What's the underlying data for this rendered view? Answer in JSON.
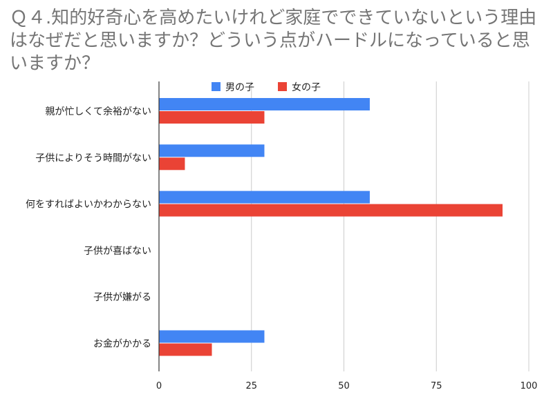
{
  "chart_data": {
    "type": "bar",
    "orientation": "horizontal",
    "title": "Ｑ４.知的好奇心を高めたいけれど家庭でできていないという理由はなぜだと思いますか？どういう点がハードルになっていると思いますか？",
    "categories": [
      "親が忙しくて余裕がない",
      "子供によりそう時間がない",
      "何をすればよいかわからない",
      "子供が喜ばない",
      "子供が嫌がる",
      "お金がかかる"
    ],
    "series": [
      {
        "name": "男の子",
        "color": "#4285f4",
        "values": [
          57,
          28.5,
          57,
          0,
          0,
          28.5
        ]
      },
      {
        "name": "女の子",
        "color": "#ea4335",
        "values": [
          28.5,
          7,
          92.9,
          0,
          0,
          14.3
        ]
      }
    ],
    "xlim": [
      0,
      100
    ],
    "xticks": [
      "0",
      "25",
      "50",
      "75",
      "100"
    ],
    "xtick_values": [
      0,
      25,
      50,
      75,
      100
    ],
    "grid": true,
    "legend_position": "top"
  }
}
